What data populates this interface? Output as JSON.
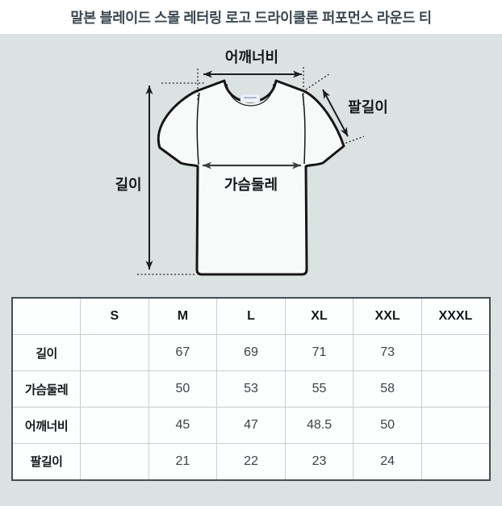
{
  "title": "말본 블레이드 스몰 레터링 로고 드라이쿨론 퍼포먼스 라운드 티",
  "diagram": {
    "labels": {
      "shoulder_width": "어깨너비",
      "arm_length": "팔길이",
      "length": "길이",
      "chest_circumference": "가슴둘레"
    }
  },
  "size_table": {
    "columns": [
      "",
      "S",
      "M",
      "L",
      "XL",
      "XXL",
      "XXXL"
    ],
    "rows": [
      {
        "label": "길이",
        "values": [
          "",
          "67",
          "69",
          "71",
          "73",
          ""
        ]
      },
      {
        "label": "가슴둘레",
        "values": [
          "",
          "50",
          "53",
          "55",
          "58",
          ""
        ]
      },
      {
        "label": "어깨너비",
        "values": [
          "",
          "45",
          "47",
          "48.5",
          "50",
          ""
        ]
      },
      {
        "label": "팔길이",
        "values": [
          "",
          "21",
          "22",
          "23",
          "24",
          ""
        ]
      }
    ]
  },
  "chart_data": {
    "type": "table",
    "title": "말본 블레이드 스몰 레터링 로고 드라이쿨론 퍼포먼스 라운드 티",
    "columns": [
      "",
      "S",
      "M",
      "L",
      "XL",
      "XXL",
      "XXXL"
    ],
    "rows": [
      [
        "길이",
        null,
        67,
        69,
        71,
        73,
        null
      ],
      [
        "가슴둘레",
        null,
        50,
        53,
        55,
        58,
        null
      ],
      [
        "어깨너비",
        null,
        45,
        47,
        48.5,
        50,
        null
      ],
      [
        "팔길이",
        null,
        21,
        22,
        23,
        24,
        null
      ]
    ]
  },
  "colors": {
    "page_background": "#dce2e1",
    "title_background": "#ffffff",
    "title_text": "#3a4750",
    "shirt_fill": "#f8faf9",
    "shirt_outline": "#161616",
    "arrow": "#1c1c1c",
    "chest_arrow": "#3d4043",
    "table_outer_border": "#454e53",
    "table_inner_border": "#c9ced1",
    "table_cell_background": "#fdfefe"
  }
}
